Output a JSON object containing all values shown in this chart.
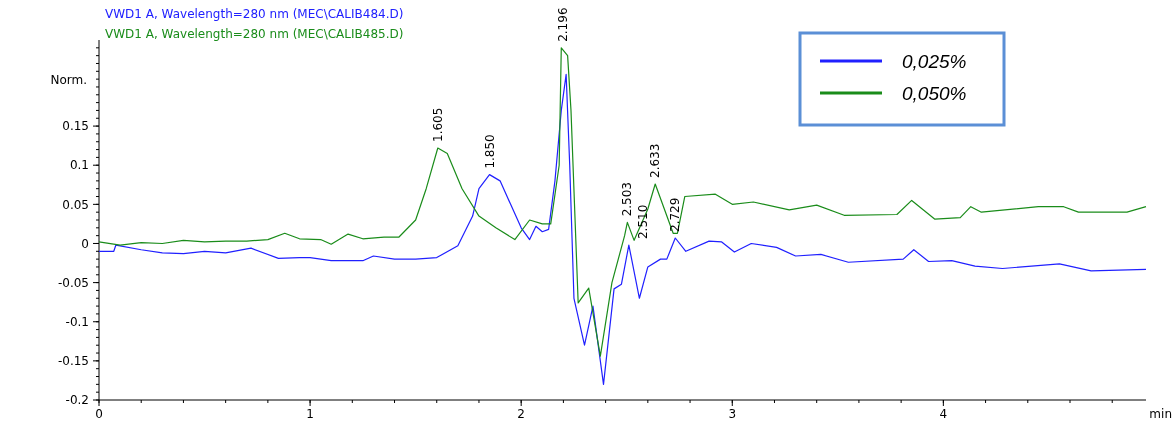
{
  "chart_data": {
    "type": "line",
    "title": "VWD1 A, Wavelength=280 nm (MEC\\CALIB484.D)",
    "subtitle": "VWD1 A, Wavelength=280 nm (MEC\\CALIB485.D)",
    "xlabel": "min",
    "ylabel": "Norm.",
    "xlim": [
      0,
      4.96
    ],
    "xticks": [
      0,
      1,
      2,
      3,
      4
    ],
    "ylim": [
      -0.2,
      0.26
    ],
    "yticks": [
      -0.2,
      -0.15,
      -0.1,
      -0.05,
      0,
      0.05,
      0.1,
      0.15
    ],
    "grid": false,
    "legend": "top right",
    "marker": "none",
    "line_style": "solid",
    "series": [
      {
        "name": "0,025%",
        "color": "#2020ff",
        "x": [
          0,
          0.07,
          0.08,
          0.2,
          0.3,
          0.4,
          0.5,
          0.6,
          0.72,
          0.85,
          0.95,
          1.0,
          1.1,
          1.25,
          1.3,
          1.4,
          1.5,
          1.6,
          1.7,
          1.77,
          1.8,
          1.85,
          1.9,
          1.95,
          2.0,
          2.04,
          2.07,
          2.1,
          2.13,
          2.16,
          2.19,
          2.213,
          2.23,
          2.25,
          2.3,
          2.34,
          2.39,
          2.44,
          2.475,
          2.51,
          2.56,
          2.6,
          2.66,
          2.69,
          2.73,
          2.78,
          2.89,
          2.95,
          3.01,
          3.09,
          3.21,
          3.3,
          3.42,
          3.55,
          3.81,
          3.86,
          3.93,
          4.04,
          4.15,
          4.28,
          4.55,
          4.7,
          4.96
        ],
        "values": [
          -0.01,
          -0.01,
          -0.002,
          -0.008,
          -0.012,
          -0.013,
          -0.01,
          -0.012,
          -0.006,
          -0.019,
          -0.018,
          -0.018,
          -0.022,
          -0.022,
          -0.016,
          -0.02,
          -0.02,
          -0.018,
          -0.003,
          0.035,
          0.07,
          0.088,
          0.08,
          0.05,
          0.02,
          0.005,
          0.022,
          0.015,
          0.018,
          0.08,
          0.17,
          0.216,
          0.1,
          -0.07,
          -0.13,
          -0.08,
          -0.18,
          -0.058,
          -0.052,
          -0.002,
          -0.07,
          -0.03,
          -0.02,
          -0.02,
          0.007,
          -0.01,
          0.003,
          0.002,
          -0.011,
          0.0,
          -0.005,
          -0.016,
          -0.014,
          -0.024,
          -0.02,
          -0.008,
          -0.023,
          -0.022,
          -0.029,
          -0.032,
          -0.026,
          -0.035,
          -0.033
        ]
      },
      {
        "name": "0,050%",
        "color": "#1a8c1a",
        "x": [
          0,
          0.1,
          0.2,
          0.3,
          0.4,
          0.5,
          0.6,
          0.7,
          0.8,
          0.88,
          0.95,
          1.05,
          1.1,
          1.18,
          1.25,
          1.35,
          1.42,
          1.5,
          1.55,
          1.605,
          1.65,
          1.72,
          1.8,
          1.88,
          1.97,
          2.04,
          2.1,
          2.14,
          2.18,
          2.19,
          2.22,
          2.236,
          2.27,
          2.32,
          2.375,
          2.43,
          2.49,
          2.503,
          2.535,
          2.6,
          2.635,
          2.72,
          2.74,
          2.775,
          2.92,
          3.0,
          3.1,
          3.27,
          3.4,
          3.53,
          3.78,
          3.85,
          3.96,
          4.08,
          4.13,
          4.18,
          4.45,
          4.57,
          4.64,
          4.87,
          4.96
        ],
        "values": [
          0.002,
          -0.002,
          0.001,
          0.0,
          0.004,
          0.002,
          0.003,
          0.003,
          0.005,
          0.013,
          0.006,
          0.005,
          -0.001,
          0.012,
          0.006,
          0.008,
          0.008,
          0.03,
          0.07,
          0.122,
          0.115,
          0.07,
          0.035,
          0.02,
          0.005,
          0.03,
          0.025,
          0.025,
          0.1,
          0.25,
          0.24,
          0.17,
          -0.076,
          -0.057,
          -0.144,
          -0.05,
          0.01,
          0.027,
          0.004,
          0.044,
          0.076,
          0.013,
          0.013,
          0.06,
          0.063,
          0.05,
          0.053,
          0.043,
          0.049,
          0.036,
          0.037,
          0.055,
          0.031,
          0.033,
          0.047,
          0.04,
          0.047,
          0.047,
          0.04,
          0.04,
          0.047
        ]
      }
    ],
    "annotations": [
      {
        "text": "1.605",
        "x": 1.605,
        "y": 0.122
      },
      {
        "text": "1.850",
        "x": 1.85,
        "y": 0.088
      },
      {
        "text": "2.196",
        "x": 2.196,
        "y": 0.25
      },
      {
        "text": "2.503",
        "x": 2.503,
        "y": 0.027
      },
      {
        "text": "2.510",
        "x": 2.51,
        "y": -0.002
      },
      {
        "text": "2.633",
        "x": 2.633,
        "y": 0.076
      },
      {
        "text": "2.729",
        "x": 2.729,
        "y": 0.007
      }
    ]
  }
}
